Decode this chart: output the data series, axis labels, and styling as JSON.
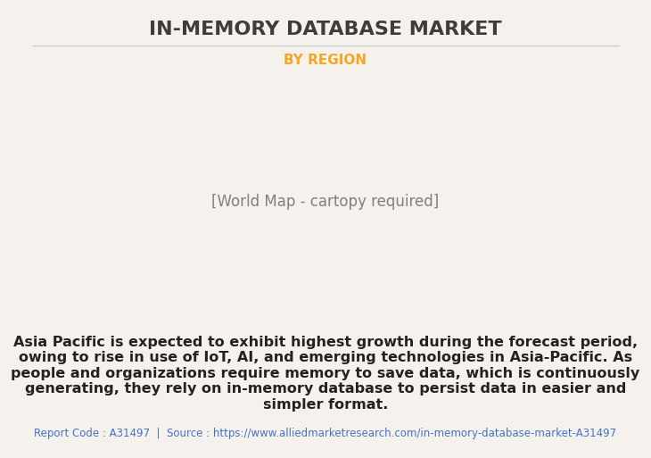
{
  "title": "IN-MEMORY DATABASE MARKET",
  "subtitle": "BY REGION",
  "subtitle_color": "#F5A623",
  "title_color": "#3d3d3d",
  "background_color": "#f5f2ed",
  "map_land_color": "#8fba8f",
  "map_highlight_color": "#f0f0f0",
  "map_border_color": "#6699cc",
  "map_shadow_color": "#888888",
  "body_text": "Asia Pacific is expected to exhibit highest growth during the forecast period, owing to rise in use of IoT, AI, and emerging technologies in Asia-Pacific. As people and organizations require memory to save data, which is continuously generating, they rely on in-memory database to persist data in easier and simpler format.",
  "footer_text": "Report Code : A31497  |  Source : https://www.alliedmarketresearch.com/in-memory-database-market-A31497",
  "footer_color": "#4472C4",
  "separator_color": "#cccccc",
  "title_fontsize": 16,
  "subtitle_fontsize": 11,
  "body_fontsize": 11.5,
  "footer_fontsize": 8.5
}
